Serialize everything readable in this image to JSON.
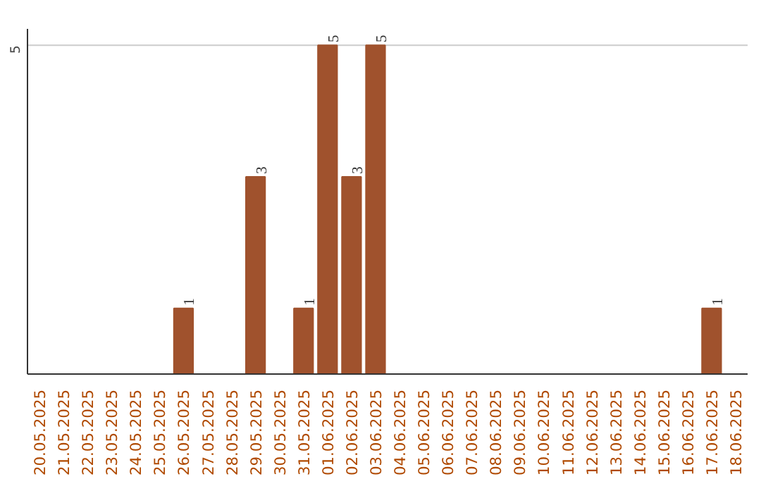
{
  "chart_data": {
    "type": "bar",
    "categories": [
      "20.05.2025",
      "21.05.2025",
      "22.05.2025",
      "23.05.2025",
      "24.05.2025",
      "25.05.2025",
      "26.05.2025",
      "27.05.2025",
      "28.05.2025",
      "29.05.2025",
      "30.05.2025",
      "31.05.2025",
      "01.06.2025",
      "02.06.2025",
      "03.06.2025",
      "04.06.2025",
      "05.06.2025",
      "06.06.2025",
      "07.06.2025",
      "08.06.2025",
      "09.06.2025",
      "10.06.2025",
      "11.06.2025",
      "12.06.2025",
      "13.06.2025",
      "14.06.2025",
      "15.06.2025",
      "16.06.2025",
      "17.06.2025",
      "18.06.2025"
    ],
    "values": [
      null,
      null,
      null,
      null,
      null,
      null,
      1,
      null,
      null,
      3,
      null,
      1,
      5,
      3,
      5,
      null,
      null,
      null,
      null,
      null,
      null,
      null,
      null,
      null,
      null,
      null,
      null,
      null,
      1,
      null
    ],
    "color": "#a0522d",
    "data_labels": true,
    "ref_lines": [
      {
        "axis": "y",
        "value": 5,
        "label": "5",
        "color": "#cccccc"
      }
    ]
  }
}
